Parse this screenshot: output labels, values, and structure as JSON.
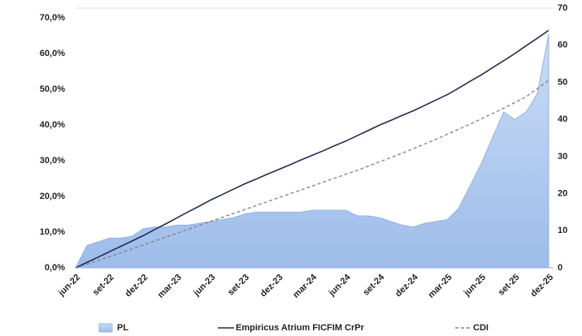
{
  "chart_data": {
    "type": "area-line",
    "categories": [
      "jun-22",
      null,
      null,
      "set-22",
      null,
      null,
      "dez-22",
      null,
      null,
      "mar-23",
      null,
      null,
      "jun-23",
      null,
      null,
      "set-23",
      null,
      null,
      "dez-23",
      null,
      null,
      "mar-24",
      null,
      null,
      "jun-24",
      null,
      null,
      "set-24",
      null,
      null,
      "dez-24",
      null,
      null,
      "mar-25",
      null,
      null,
      "jun-25",
      null,
      null,
      "set-25",
      null,
      null,
      "dez-25"
    ],
    "series": [
      {
        "name": "PL",
        "color": "#8fb4e8",
        "axis": "y2",
        "kind": "area",
        "values": [
          0,
          6,
          7,
          8,
          8,
          8.5,
          10.5,
          11,
          11,
          11.5,
          11.5,
          12,
          12.5,
          13,
          13.5,
          14.5,
          15,
          15,
          15,
          15,
          15,
          15.5,
          15.5,
          15.5,
          15.5,
          14,
          14,
          13.5,
          12.5,
          11.5,
          11,
          12,
          12.5,
          13,
          16,
          22,
          28,
          35,
          42,
          40,
          42,
          47,
          63
        ]
      },
      {
        "name": "Empiricus Atrium FICFIM CrPr",
        "color": "#1f2d4f",
        "kind": "line",
        "values": [
          0,
          1.5,
          3,
          4.5,
          6,
          7.5,
          9,
          10.7,
          12.3,
          14,
          15.7,
          17.3,
          19,
          20.5,
          22,
          23.5,
          24.8,
          26.2,
          27.5,
          28.8,
          30.2,
          31.5,
          32.8,
          34.2,
          35.5,
          37,
          38.5,
          40,
          41.3,
          42.7,
          44,
          45.5,
          47,
          48.5,
          50.3,
          52.2,
          54,
          56,
          58,
          60,
          62.2,
          64.3,
          66.5
        ]
      },
      {
        "name": "CDI",
        "color": "#808080",
        "kind": "dashed",
        "values": [
          0,
          1.0,
          2.1,
          3.1,
          4.2,
          5.3,
          6.4,
          7.5,
          8.6,
          9.7,
          10.8,
          11.9,
          13.0,
          14.1,
          15.2,
          16.3,
          17.4,
          18.5,
          19.6,
          20.7,
          21.8,
          22.9,
          24.0,
          25.1,
          26.2,
          27.3,
          28.5,
          29.7,
          30.9,
          32.1,
          33.4,
          34.7,
          36.0,
          37.4,
          38.8,
          40.2,
          41.7,
          43.2,
          44.7,
          46.3,
          47.9,
          50.2,
          52.5
        ]
      }
    ],
    "ylim": [
      0,
      70
    ],
    "yticks": [
      {
        "value": 0,
        "label": "0,0%"
      },
      {
        "value": 10,
        "label": "10,0%"
      },
      {
        "value": 20,
        "label": "20,0%"
      },
      {
        "value": 30,
        "label": "30,0%"
      },
      {
        "value": 40,
        "label": "40,0%"
      },
      {
        "value": 50,
        "label": "50,0%"
      },
      {
        "value": 60,
        "label": "60,0%"
      },
      {
        "value": 70,
        "label": "70,0%"
      }
    ],
    "y2lim": [
      0,
      70
    ],
    "y2ticks": [
      0,
      10,
      20,
      30,
      40,
      50,
      60,
      70
    ],
    "legend": "bottom"
  }
}
